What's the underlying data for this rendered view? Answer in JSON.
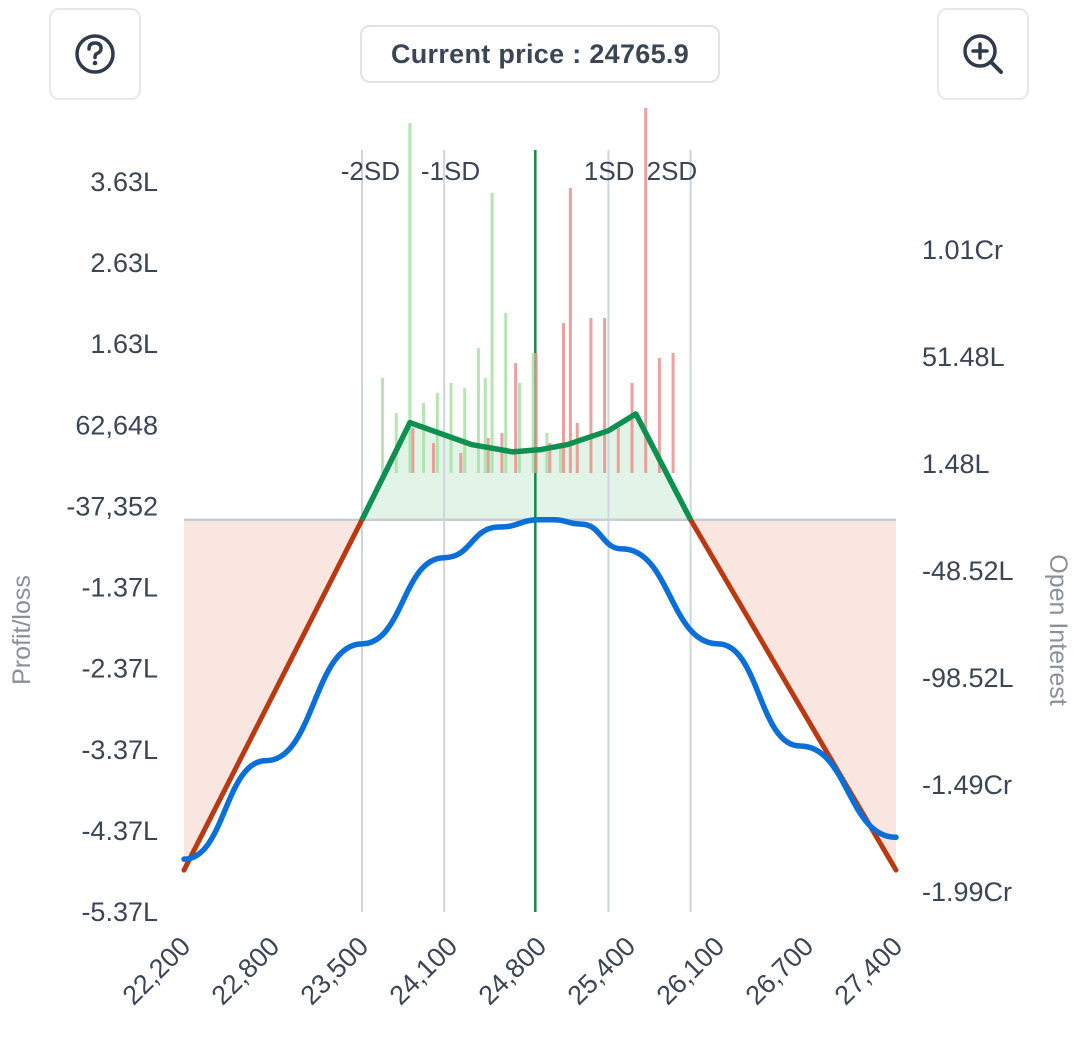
{
  "header": {
    "help_icon": "question-circle-icon",
    "zoom_icon": "zoom-in-icon",
    "price_label": "Current price : ",
    "price_value": "24765.9"
  },
  "colors": {
    "profit_line": "#0e9150",
    "loss_line": "#b93a12",
    "target_line": "#0a6fd6",
    "profit_fill": "#e2f4e8",
    "loss_fill": "#f9e6e1",
    "call_oi": "#e8908c",
    "put_oi": "#a7e0a4",
    "current_price_line": "#108a4a",
    "sd_line": "#cfd5dd"
  },
  "chart_data": {
    "type": "line",
    "x_ticks": [
      "22,200",
      "22,800",
      "23,500",
      "24,100",
      "24,800",
      "25,400",
      "26,100",
      "26,700",
      "27,400"
    ],
    "xlim": [
      22200,
      27400
    ],
    "left_axis": {
      "label": "Profit/loss",
      "ticks": [
        "3.63L",
        "2.63L",
        "1.63L",
        "62,648",
        "-37,352",
        "-1.37L",
        "-2.37L",
        "-3.37L",
        "-4.37L",
        "-5.37L"
      ],
      "ylim": [
        -537352,
        462648
      ]
    },
    "right_axis": {
      "label": "Open Interest",
      "ticks": [
        "1.01Cr",
        "51.48L",
        "1.48L",
        "-48.52L",
        "-98.52L",
        "-1.49Cr",
        "-1.99Cr"
      ]
    },
    "sd_markers": [
      {
        "label": "-2SD",
        "x": 23500
      },
      {
        "label": "-1SD",
        "x": 24100
      },
      {
        "label": "1SD",
        "x": 25300
      },
      {
        "label": "2SD",
        "x": 25900
      }
    ],
    "current_price": 24765.9,
    "expiry_payoff": {
      "x": [
        22200,
        23500,
        23850,
        24300,
        24600,
        24800,
        25000,
        25300,
        25500,
        25900,
        27400
      ],
      "y": [
        -480000,
        0,
        133000,
        103000,
        93000,
        96000,
        103000,
        122000,
        145000,
        0,
        -480000
      ]
    },
    "target_payoff": {
      "x": [
        22200,
        22800,
        23500,
        24100,
        24500,
        24800,
        24900,
        25100,
        25400,
        26100,
        26700,
        27400
      ],
      "y": [
        -465000,
        -330000,
        -170000,
        -52000,
        -10000,
        0,
        0,
        -6000,
        -40000,
        -170000,
        -310000,
        -435000
      ]
    },
    "oi_bars": {
      "puts": [
        {
          "x": 23650,
          "oi": 95
        },
        {
          "x": 23750,
          "oi": 60
        },
        {
          "x": 23850,
          "oi": 350
        },
        {
          "x": 23950,
          "oi": 70
        },
        {
          "x": 24050,
          "oi": 80
        },
        {
          "x": 24150,
          "oi": 90
        },
        {
          "x": 24250,
          "oi": 85
        },
        {
          "x": 24350,
          "oi": 125
        },
        {
          "x": 24400,
          "oi": 95
        },
        {
          "x": 24450,
          "oi": 280
        },
        {
          "x": 24550,
          "oi": 160
        },
        {
          "x": 24650,
          "oi": 90
        },
        {
          "x": 24750,
          "oi": 120
        },
        {
          "x": 24850,
          "oi": 40
        },
        {
          "x": 24950,
          "oi": 30
        }
      ],
      "calls": [
        {
          "x": 23850,
          "oi": 45
        },
        {
          "x": 24000,
          "oi": 30
        },
        {
          "x": 24200,
          "oi": 20
        },
        {
          "x": 24400,
          "oi": 35
        },
        {
          "x": 24500,
          "oi": 40
        },
        {
          "x": 24600,
          "oi": 110
        },
        {
          "x": 24750,
          "oi": 120
        },
        {
          "x": 24850,
          "oi": 30
        },
        {
          "x": 24950,
          "oi": 150
        },
        {
          "x": 25000,
          "oi": 285
        },
        {
          "x": 25050,
          "oi": 50
        },
        {
          "x": 25150,
          "oi": 155
        },
        {
          "x": 25250,
          "oi": 155
        },
        {
          "x": 25350,
          "oi": 45
        },
        {
          "x": 25450,
          "oi": 90
        },
        {
          "x": 25550,
          "oi": 365
        },
        {
          "x": 25650,
          "oi": 115
        },
        {
          "x": 25750,
          "oi": 120
        }
      ]
    }
  }
}
